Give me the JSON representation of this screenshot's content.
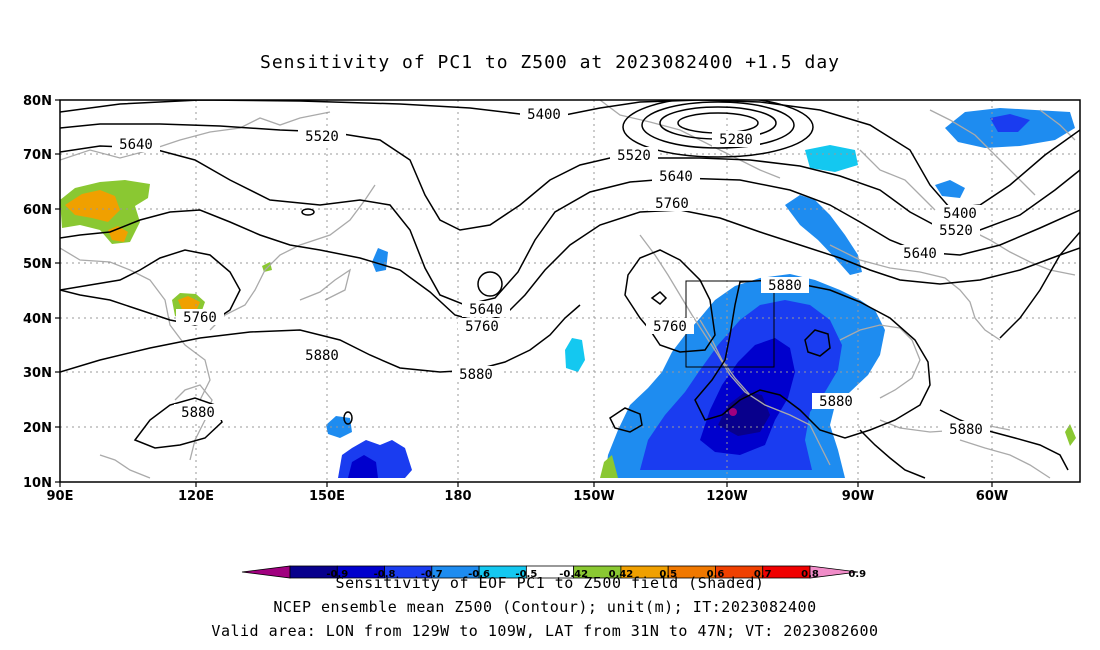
{
  "title": "Sensitivity of PC1 to Z500 at 2023082400 +1.5 day",
  "map": {
    "lat_labels": [
      "80N",
      "70N",
      "60N",
      "50N",
      "40N",
      "30N",
      "20N",
      "10N"
    ],
    "lon_labels": [
      "90E",
      "120E",
      "150E",
      "180",
      "150W",
      "120W",
      "90W",
      "60W"
    ],
    "contour_labels": [
      {
        "text": "5400"
      },
      {
        "text": "5280"
      },
      {
        "text": "5520"
      },
      {
        "text": "5520"
      },
      {
        "text": "5640"
      },
      {
        "text": "5640"
      },
      {
        "text": "5760"
      },
      {
        "text": "5400"
      },
      {
        "text": "5520"
      },
      {
        "text": "5640"
      },
      {
        "text": "5640"
      },
      {
        "text": "5760"
      },
      {
        "text": "5760"
      },
      {
        "text": "5760"
      },
      {
        "text": "5880"
      },
      {
        "text": "5880"
      },
      {
        "text": "5880"
      },
      {
        "text": "5880"
      },
      {
        "text": "5880"
      },
      {
        "text": "5880"
      }
    ],
    "valid_area_box": {
      "lon_min": "129W",
      "lon_max": "109W",
      "lat_min": "31N",
      "lat_max": "47N"
    }
  },
  "colorbar": {
    "colors": [
      "#a0007f",
      "#08008c",
      "#0000cd",
      "#1a3cf0",
      "#1e8cf0",
      "#14c8f0",
      "#ffffff",
      "#8ac832",
      "#f0a000",
      "#f07800",
      "#f04000",
      "#f00000",
      "#f08cc8"
    ],
    "labels": [
      "-0.9",
      "-0.8",
      "-0.7",
      "-0.6",
      "-0.5",
      "-0.42",
      "0.42",
      "0.5",
      "0.6",
      "0.7",
      "0.8",
      "0.9"
    ]
  },
  "footer": {
    "line1": "Sensitivity of EOF PC1 to Z500 field (Shaded)",
    "line2": "NCEP ensemble mean Z500 (Contour); unit(m); IT:2023082400",
    "line3": "Valid area: LON from 129W to 109W, LAT from 31N to 47N; VT: 2023082600"
  }
}
